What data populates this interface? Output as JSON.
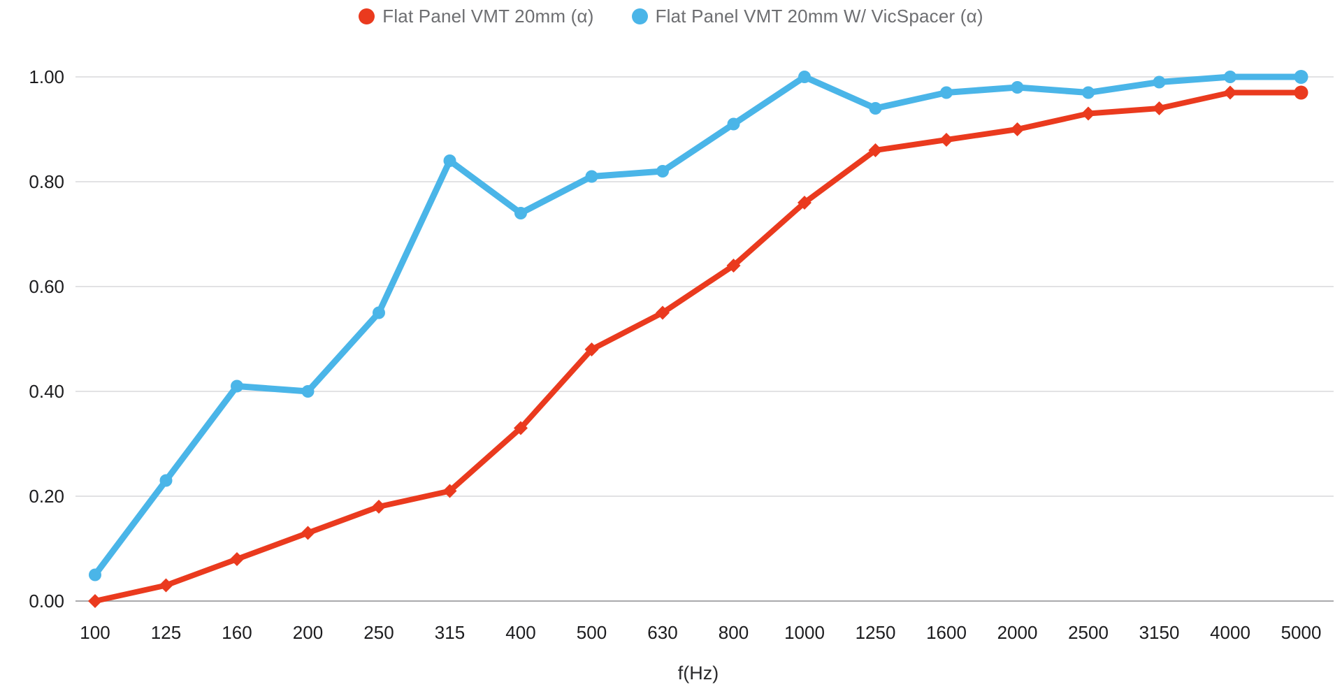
{
  "chart_data": {
    "type": "line",
    "title": "",
    "xlabel": "f(Hz)",
    "ylabel": "",
    "categories": [
      "100",
      "125",
      "160",
      "200",
      "250",
      "315",
      "400",
      "500",
      "630",
      "800",
      "1000",
      "1250",
      "1600",
      "2000",
      "2500",
      "3150",
      "4000",
      "5000"
    ],
    "series": [
      {
        "name": "Flat Panel VMT 20mm (α)",
        "color": "#ea3a1e",
        "marker": "diamond",
        "values": [
          0.0,
          0.03,
          0.08,
          0.13,
          0.18,
          0.21,
          0.33,
          0.48,
          0.55,
          0.64,
          0.76,
          0.86,
          0.88,
          0.9,
          0.93,
          0.94,
          0.97,
          0.97
        ]
      },
      {
        "name": "Flat Panel VMT 20mm W/ VicSpacer (α)",
        "color": "#4ab5e8",
        "marker": "circle",
        "values": [
          0.05,
          0.23,
          0.41,
          0.4,
          0.55,
          0.84,
          0.74,
          0.81,
          0.82,
          0.91,
          1.0,
          0.94,
          0.97,
          0.98,
          0.97,
          0.99,
          1.0,
          1.0
        ]
      }
    ],
    "ylim": [
      0.0,
      1.0
    ],
    "yticks": [
      0.0,
      0.2,
      0.4,
      0.6,
      0.8,
      1.0
    ],
    "ytick_labels": [
      "0.00",
      "0.20",
      "0.40",
      "0.60",
      "0.80",
      "1.00"
    ],
    "grid": "horizontal",
    "legend_position": "top-center",
    "colors": {
      "gridline": "#e2e2e4",
      "baseline": "#aaaaac",
      "tick_text": "#1c1c1e",
      "legend_text": "#6d6e71"
    }
  }
}
